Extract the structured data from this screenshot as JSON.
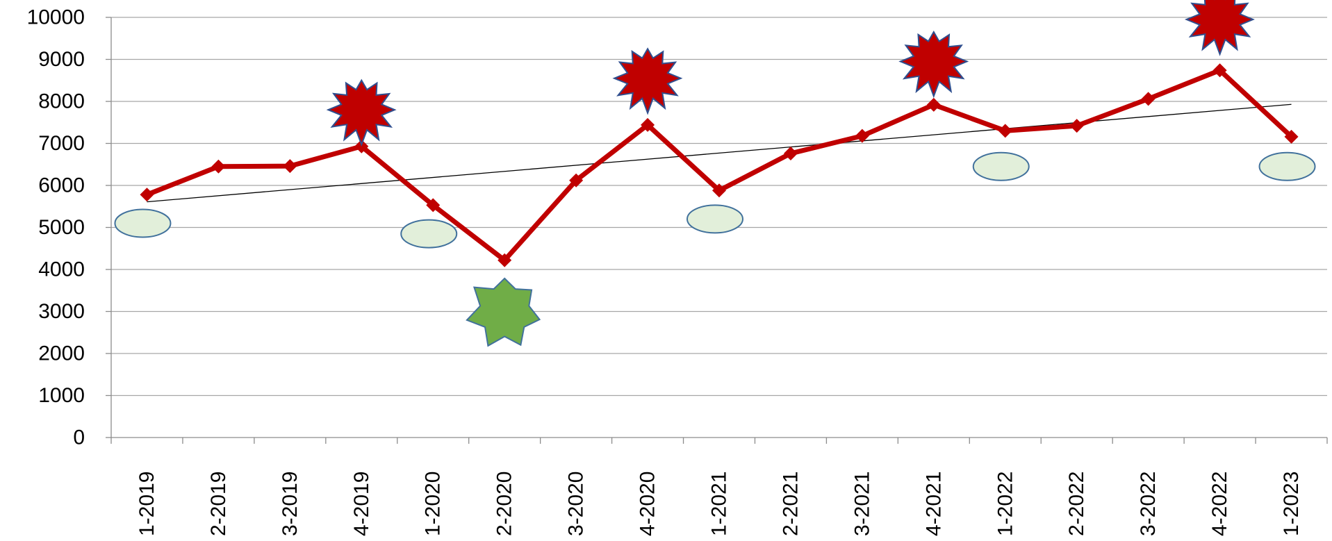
{
  "chart_data": {
    "type": "line",
    "categories": [
      "1-2019",
      "2-2019",
      "3-2019",
      "4-2019",
      "1-2020",
      "2-2020",
      "3-2020",
      "4-2020",
      "1-2021",
      "2-2021",
      "3-2021",
      "4-2021",
      "1-2022",
      "2-2022",
      "3-2022",
      "4-2022",
      "1-2023"
    ],
    "series": [
      {
        "values": [
          5780,
          6450,
          6460,
          6930,
          5530,
          4220,
          6120,
          7440,
          5880,
          6760,
          7180,
          7920,
          7300,
          7420,
          8060,
          8740,
          7160
        ],
        "color": "#c00000",
        "marker": "diamond"
      }
    ],
    "trendline": {
      "type": "linear",
      "start": 5610,
      "end": 7930,
      "color": "#000000"
    },
    "annotations": [
      {
        "shape": "red-burst",
        "category": "4-2019",
        "value": 7800
      },
      {
        "shape": "red-burst",
        "category": "4-2020",
        "value": 8550
      },
      {
        "shape": "red-burst",
        "category": "4-2021",
        "value": 8950
      },
      {
        "shape": "red-burst",
        "category": "4-2022",
        "value": 9950
      },
      {
        "shape": "green-star",
        "category": "2-2020",
        "value": 3000
      },
      {
        "shape": "light-green-oval",
        "category": "1-2019",
        "value": 5100
      },
      {
        "shape": "light-green-oval",
        "category": "1-2020",
        "value": 4850
      },
      {
        "shape": "light-green-oval",
        "category": "1-2021",
        "value": 5200
      },
      {
        "shape": "light-green-oval",
        "category": "1-2022",
        "value": 6450
      },
      {
        "shape": "light-green-oval",
        "category": "1-2023",
        "value": 6450
      }
    ],
    "ylim": [
      0,
      10000
    ],
    "yticks": [
      "0",
      "1000",
      "2000",
      "3000",
      "4000",
      "5000",
      "6000",
      "7000",
      "8000",
      "9000",
      "10000"
    ],
    "grid": true,
    "legend": "none",
    "colors": {
      "line": "#c00000",
      "burst_fill": "#c00000",
      "burst_stroke": "#2f4f8f",
      "star_fill": "#70ad47",
      "star_stroke": "#41719c",
      "oval_fill": "#e2efda",
      "oval_stroke": "#41719c"
    }
  }
}
